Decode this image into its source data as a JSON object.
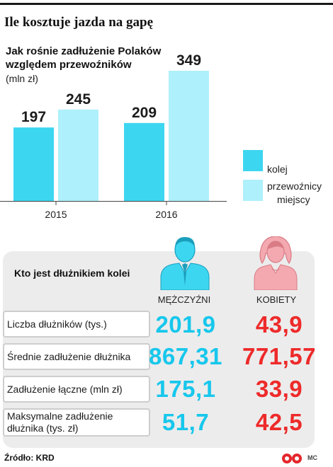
{
  "header": {
    "title": "Ile kosztuje jazda na gapę"
  },
  "colors": {
    "kolej": "#3dd6f0",
    "przewoznicy": "#aef0fb",
    "men": "#17c7ec",
    "women": "#ee2a2a",
    "men_icon": "#3dd6f0",
    "women_icon": "#f4a9b0"
  },
  "chart_data": {
    "type": "bar",
    "title": "Jak rośnie zadłużenie Polaków względem przewoźników",
    "unit": "(mln zł)",
    "categories": [
      "2015",
      "2016"
    ],
    "series": [
      {
        "name": "kolej",
        "values": [
          197,
          209
        ],
        "color": "#3dd6f0"
      },
      {
        "name": "przewoźnicy miejscy",
        "values": [
          245,
          349
        ],
        "color": "#aef0fb"
      }
    ],
    "ylim": [
      0,
      349
    ],
    "legend_position": "right"
  },
  "legend": {
    "kolej": "kolej",
    "przewoznicy_line1": "przewoźnicy",
    "przewoznicy_line2": "miejscy"
  },
  "table": {
    "heading": "Kto jest dłużnikiem kolei",
    "col_men": "MĘŻCZYŹNI",
    "col_women": "KOBIETY",
    "rows": [
      {
        "label": "Liczba dłużników (tys.)",
        "men": "201,9",
        "women": "43,9"
      },
      {
        "label": "Średnie zadłużenie dłużnika",
        "men": "867,31",
        "women": "771,57"
      },
      {
        "label": "Zadłużenie łączne (mln zł)",
        "men": "175,1",
        "women": "33,9"
      },
      {
        "label": "Maksymalne zadłużenie dłużnika (tys. zł)",
        "men": "51,7",
        "women": "42,5"
      }
    ]
  },
  "footer": {
    "source": "Źródło: KRD",
    "initials": "MC"
  }
}
